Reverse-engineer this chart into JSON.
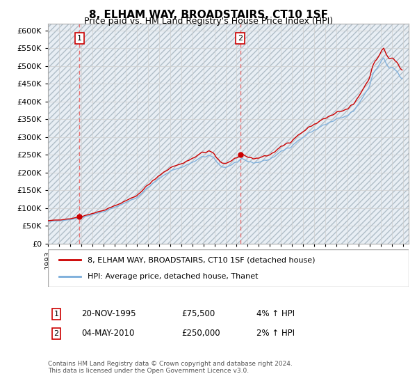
{
  "title": "8, ELHAM WAY, BROADSTAIRS, CT10 1SF",
  "subtitle": "Price paid vs. HM Land Registry's House Price Index (HPI)",
  "ylim": [
    0,
    620000
  ],
  "yticks": [
    0,
    50000,
    100000,
    150000,
    200000,
    250000,
    300000,
    350000,
    400000,
    450000,
    500000,
    550000,
    600000
  ],
  "xlim_start": 1993.0,
  "xlim_end": 2025.5,
  "sale1_date": 1995.9,
  "sale1_price": 75500,
  "sale2_date": 2010.35,
  "sale2_price": 250000,
  "sale1_label": "20-NOV-1995",
  "sale1_amount": "£75,500",
  "sale1_hpi": "4% ↑ HPI",
  "sale2_label": "04-MAY-2010",
  "sale2_amount": "£250,000",
  "sale2_hpi": "2% ↑ HPI",
  "legend_line1": "8, ELHAM WAY, BROADSTAIRS, CT10 1SF (detached house)",
  "legend_line2": "HPI: Average price, detached house, Thanet",
  "footer": "Contains HM Land Registry data © Crown copyright and database right 2024.\nThis data is licensed under the Open Government Licence v3.0.",
  "hpi_color": "#7aaddb",
  "price_color": "#cc0000",
  "bg_hatch_color": "#e8eef4",
  "grid_color": "#cccccc",
  "vline_color": "#e87070"
}
